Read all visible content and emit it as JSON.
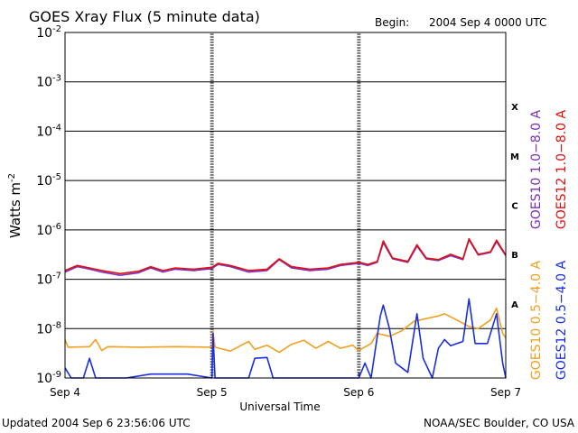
{
  "header": {
    "title": "GOES Xray Flux (5 minute data)",
    "begin_label": "Begin:",
    "begin_value": "2004 Sep 4 0000 UTC"
  },
  "footer": {
    "updated": "Updated 2004 Sep  6 23:56:06 UTC",
    "credit": "NOAA/SEC Boulder, CO USA"
  },
  "colors": {
    "goes10_long": "#7b30c0",
    "goes12_long": "#e01010",
    "goes10_short": "#f0a020",
    "goes12_short": "#1a2ee0"
  },
  "chart_data": {
    "type": "line",
    "title": "GOES Xray Flux (5 minute data)",
    "xlabel": "Universal Time",
    "ylabel_base": "Watts m",
    "ylabel_exp": "-2",
    "yscale": "log",
    "ylim": [
      1e-09,
      0.01
    ],
    "xlim": [
      "2004-09-04 00:00",
      "2004-09-07 00:00"
    ],
    "grid": "horizontal at decades",
    "x_ticks": [
      {
        "label": "Sep 4",
        "t": "2004-09-04 00:00"
      },
      {
        "label": "Sep 5",
        "t": "2004-09-05 00:00"
      },
      {
        "label": "Sep 6",
        "t": "2004-09-06 00:00"
      },
      {
        "label": "Sep 7",
        "t": "2004-09-07 00:00"
      }
    ],
    "y_ticks": [
      {
        "base": "10",
        "exp": "-2",
        "value": 0.01
      },
      {
        "base": "10",
        "exp": "-3",
        "value": 0.001
      },
      {
        "base": "10",
        "exp": "-4",
        "value": 0.0001
      },
      {
        "base": "10",
        "exp": "-5",
        "value": 1e-05
      },
      {
        "base": "10",
        "exp": "-6",
        "value": 1e-06
      },
      {
        "base": "10",
        "exp": "-7",
        "value": 1e-07
      },
      {
        "base": "10",
        "exp": "-8",
        "value": 1e-08
      },
      {
        "base": "10",
        "exp": "-9",
        "value": 1e-09
      }
    ],
    "flare_classes": [
      {
        "label": "X",
        "low": 0.0001,
        "high": 0.001
      },
      {
        "label": "M",
        "low": 1e-05,
        "high": 0.0001
      },
      {
        "label": "C",
        "low": 1e-06,
        "high": 1e-05
      },
      {
        "label": "B",
        "low": 1e-07,
        "high": 1e-06
      },
      {
        "label": "A",
        "low": 1e-08,
        "high": 1e-07
      }
    ],
    "legend_right": [
      {
        "text": "GOES10 1.0−8.0 A",
        "color": "#7b30c0"
      },
      {
        "text": "GOES12 1.0−8.0 A",
        "color": "#e01010"
      },
      {
        "text": "GOES10 0.5−4.0 A",
        "color": "#f0a020"
      },
      {
        "text": "GOES12 0.5−4.0 A",
        "color": "#1a2ee0"
      }
    ],
    "series": [
      {
        "name": "GOES10 1.0−8.0 A",
        "color": "#7b30c0",
        "points": [
          [
            "2004-09-04 00:00",
            1.4e-07
          ],
          [
            "2004-09-04 02:00",
            1.8e-07
          ],
          [
            "2004-09-04 04:00",
            1.6e-07
          ],
          [
            "2004-09-04 06:00",
            1.4e-07
          ],
          [
            "2004-09-04 09:00",
            1.2e-07
          ],
          [
            "2004-09-04 12:00",
            1.35e-07
          ],
          [
            "2004-09-04 14:00",
            1.7e-07
          ],
          [
            "2004-09-04 16:00",
            1.4e-07
          ],
          [
            "2004-09-04 18:00",
            1.6e-07
          ],
          [
            "2004-09-04 21:00",
            1.5e-07
          ],
          [
            "2004-09-05 00:00",
            1.65e-07
          ],
          [
            "2004-09-05 01:00",
            2e-07
          ],
          [
            "2004-09-05 03:00",
            1.8e-07
          ],
          [
            "2004-09-05 06:00",
            1.4e-07
          ],
          [
            "2004-09-05 09:00",
            1.5e-07
          ],
          [
            "2004-09-05 11:00",
            2.5e-07
          ],
          [
            "2004-09-05 13:00",
            1.7e-07
          ],
          [
            "2004-09-05 16:00",
            1.5e-07
          ],
          [
            "2004-09-05 19:00",
            1.6e-07
          ],
          [
            "2004-09-05 21:00",
            1.9e-07
          ],
          [
            "2004-09-06 00:00",
            2.1e-07
          ],
          [
            "2004-09-06 01:30",
            1.9e-07
          ],
          [
            "2004-09-06 03:00",
            2.2e-07
          ],
          [
            "2004-09-06 04:00",
            5.5e-07
          ],
          [
            "2004-09-06 05:30",
            2.6e-07
          ],
          [
            "2004-09-06 08:00",
            2.2e-07
          ],
          [
            "2004-09-06 09:30",
            4.7e-07
          ],
          [
            "2004-09-06 11:00",
            2.6e-07
          ],
          [
            "2004-09-06 13:00",
            2.4e-07
          ],
          [
            "2004-09-06 15:00",
            3e-07
          ],
          [
            "2004-09-06 17:00",
            2.5e-07
          ],
          [
            "2004-09-06 18:00",
            6.3e-07
          ],
          [
            "2004-09-06 19:30",
            3.1e-07
          ],
          [
            "2004-09-06 21:30",
            3.5e-07
          ],
          [
            "2004-09-06 22:30",
            5.8e-07
          ],
          [
            "2004-09-07 00:00",
            3e-07
          ]
        ]
      },
      {
        "name": "GOES12 1.0−8.0 A",
        "color": "#e01010",
        "points": [
          [
            "2004-09-04 00:00",
            1.5e-07
          ],
          [
            "2004-09-04 02:00",
            1.9e-07
          ],
          [
            "2004-09-04 04:00",
            1.7e-07
          ],
          [
            "2004-09-04 06:00",
            1.5e-07
          ],
          [
            "2004-09-04 09:00",
            1.3e-07
          ],
          [
            "2004-09-04 12:00",
            1.45e-07
          ],
          [
            "2004-09-04 14:00",
            1.8e-07
          ],
          [
            "2004-09-04 16:00",
            1.5e-07
          ],
          [
            "2004-09-04 18:00",
            1.7e-07
          ],
          [
            "2004-09-04 21:00",
            1.6e-07
          ],
          [
            "2004-09-05 00:00",
            1.75e-07
          ],
          [
            "2004-09-05 01:00",
            2.1e-07
          ],
          [
            "2004-09-05 03:00",
            1.9e-07
          ],
          [
            "2004-09-05 06:00",
            1.5e-07
          ],
          [
            "2004-09-05 09:00",
            1.6e-07
          ],
          [
            "2004-09-05 11:00",
            2.6e-07
          ],
          [
            "2004-09-05 13:00",
            1.8e-07
          ],
          [
            "2004-09-05 16:00",
            1.6e-07
          ],
          [
            "2004-09-05 19:00",
            1.7e-07
          ],
          [
            "2004-09-05 21:00",
            2e-07
          ],
          [
            "2004-09-06 00:00",
            2.2e-07
          ],
          [
            "2004-09-06 01:30",
            2e-07
          ],
          [
            "2004-09-06 03:00",
            2.3e-07
          ],
          [
            "2004-09-06 04:00",
            6e-07
          ],
          [
            "2004-09-06 05:30",
            2.7e-07
          ],
          [
            "2004-09-06 08:00",
            2.3e-07
          ],
          [
            "2004-09-06 09:30",
            5e-07
          ],
          [
            "2004-09-06 11:00",
            2.7e-07
          ],
          [
            "2004-09-06 13:00",
            2.5e-07
          ],
          [
            "2004-09-06 15:00",
            3.2e-07
          ],
          [
            "2004-09-06 17:00",
            2.6e-07
          ],
          [
            "2004-09-06 18:00",
            6.6e-07
          ],
          [
            "2004-09-06 19:30",
            3.2e-07
          ],
          [
            "2004-09-06 21:30",
            3.6e-07
          ],
          [
            "2004-09-06 22:30",
            6.2e-07
          ],
          [
            "2004-09-07 00:00",
            3.1e-07
          ]
        ]
      },
      {
        "name": "GOES10 0.5−4.0 A",
        "color": "#f0a020",
        "points": [
          [
            "2004-09-04 00:00",
            6e-09
          ],
          [
            "2004-09-04 00:30",
            4.2e-09
          ],
          [
            "2004-09-04 04:00",
            4.3e-09
          ],
          [
            "2004-09-04 05:00",
            6e-09
          ],
          [
            "2004-09-04 06:00",
            3.6e-09
          ],
          [
            "2004-09-04 07:00",
            4.3e-09
          ],
          [
            "2004-09-04 12:00",
            4.2e-09
          ],
          [
            "2004-09-04 18:00",
            4.3e-09
          ],
          [
            "2004-09-05 00:00",
            4.2e-09
          ],
          [
            "2004-09-05 00:10",
            9e-09
          ],
          [
            "2004-09-05 00:30",
            4.2e-09
          ],
          [
            "2004-09-05 03:00",
            3.5e-09
          ],
          [
            "2004-09-05 06:00",
            5.5e-09
          ],
          [
            "2004-09-05 07:00",
            3.8e-09
          ],
          [
            "2004-09-05 09:00",
            4.6e-09
          ],
          [
            "2004-09-05 11:00",
            3.3e-09
          ],
          [
            "2004-09-05 13:00",
            4.8e-09
          ],
          [
            "2004-09-05 15:00",
            5.8e-09
          ],
          [
            "2004-09-05 17:00",
            4e-09
          ],
          [
            "2004-09-05 19:00",
            5.5e-09
          ],
          [
            "2004-09-05 21:00",
            4e-09
          ],
          [
            "2004-09-05 23:00",
            4.6e-09
          ],
          [
            "2004-09-06 00:00",
            3.6e-09
          ],
          [
            "2004-09-06 02:00",
            5e-09
          ],
          [
            "2004-09-06 03:00",
            8e-09
          ],
          [
            "2004-09-06 05:00",
            7e-09
          ],
          [
            "2004-09-06 07:00",
            9e-09
          ],
          [
            "2004-09-06 09:00",
            1.4e-08
          ],
          [
            "2004-09-06 11:00",
            1.6e-08
          ],
          [
            "2004-09-06 13:00",
            1.8e-08
          ],
          [
            "2004-09-06 14:00",
            2e-08
          ],
          [
            "2004-09-06 16:00",
            1.5e-08
          ],
          [
            "2004-09-06 18:00",
            1.1e-08
          ],
          [
            "2004-09-06 19:30",
            1e-08
          ],
          [
            "2004-09-06 21:30",
            1.5e-08
          ],
          [
            "2004-09-06 22:30",
            2.6e-08
          ],
          [
            "2004-09-06 23:30",
            8e-09
          ],
          [
            "2004-09-07 00:00",
            6.5e-09
          ]
        ]
      },
      {
        "name": "GOES12 0.5−4.0 A",
        "color": "#1a2ee0",
        "points": [
          [
            "2004-09-04 00:00",
            1.6e-09
          ],
          [
            "2004-09-04 01:00",
            1e-09
          ],
          [
            "2004-09-04 03:00",
            1e-09
          ],
          [
            "2004-09-04 04:00",
            2.5e-09
          ],
          [
            "2004-09-04 05:00",
            1e-09
          ],
          [
            "2004-09-04 10:00",
            1e-09
          ],
          [
            "2004-09-04 14:00",
            1.2e-09
          ],
          [
            "2004-09-04 20:00",
            1.2e-09
          ],
          [
            "2004-09-05 00:00",
            1e-09
          ],
          [
            "2004-09-05 00:10",
            8e-09
          ],
          [
            "2004-09-05 00:30",
            1e-09
          ],
          [
            "2004-09-05 04:00",
            1e-09
          ],
          [
            "2004-09-05 06:00",
            1e-09
          ],
          [
            "2004-09-05 07:00",
            2.5e-09
          ],
          [
            "2004-09-05 09:00",
            2.6e-09
          ],
          [
            "2004-09-05 10:00",
            1e-09
          ],
          [
            "2004-09-05 14:00",
            1e-09
          ],
          [
            "2004-09-05 19:00",
            1e-09
          ],
          [
            "2004-09-05 22:00",
            1e-09
          ],
          [
            "2004-09-06 00:00",
            1e-09
          ],
          [
            "2004-09-06 01:00",
            2e-09
          ],
          [
            "2004-09-06 02:00",
            1e-09
          ],
          [
            "2004-09-06 03:30",
            1.8e-08
          ],
          [
            "2004-09-06 04:00",
            3e-08
          ],
          [
            "2004-09-06 05:00",
            1e-08
          ],
          [
            "2004-09-06 06:00",
            2e-09
          ],
          [
            "2004-09-06 08:00",
            1.3e-09
          ],
          [
            "2004-09-06 09:30",
            2e-08
          ],
          [
            "2004-09-06 10:30",
            2.5e-09
          ],
          [
            "2004-09-06 12:00",
            1e-09
          ],
          [
            "2004-09-06 13:00",
            4e-09
          ],
          [
            "2004-09-06 14:00",
            6e-09
          ],
          [
            "2004-09-06 15:00",
            4.5e-09
          ],
          [
            "2004-09-06 17:00",
            5.5e-09
          ],
          [
            "2004-09-06 18:00",
            4e-08
          ],
          [
            "2004-09-06 19:00",
            5e-09
          ],
          [
            "2004-09-06 21:00",
            5e-09
          ],
          [
            "2004-09-06 22:30",
            2e-08
          ],
          [
            "2004-09-06 23:30",
            2e-09
          ],
          [
            "2004-09-07 00:00",
            1e-09
          ]
        ]
      }
    ]
  }
}
